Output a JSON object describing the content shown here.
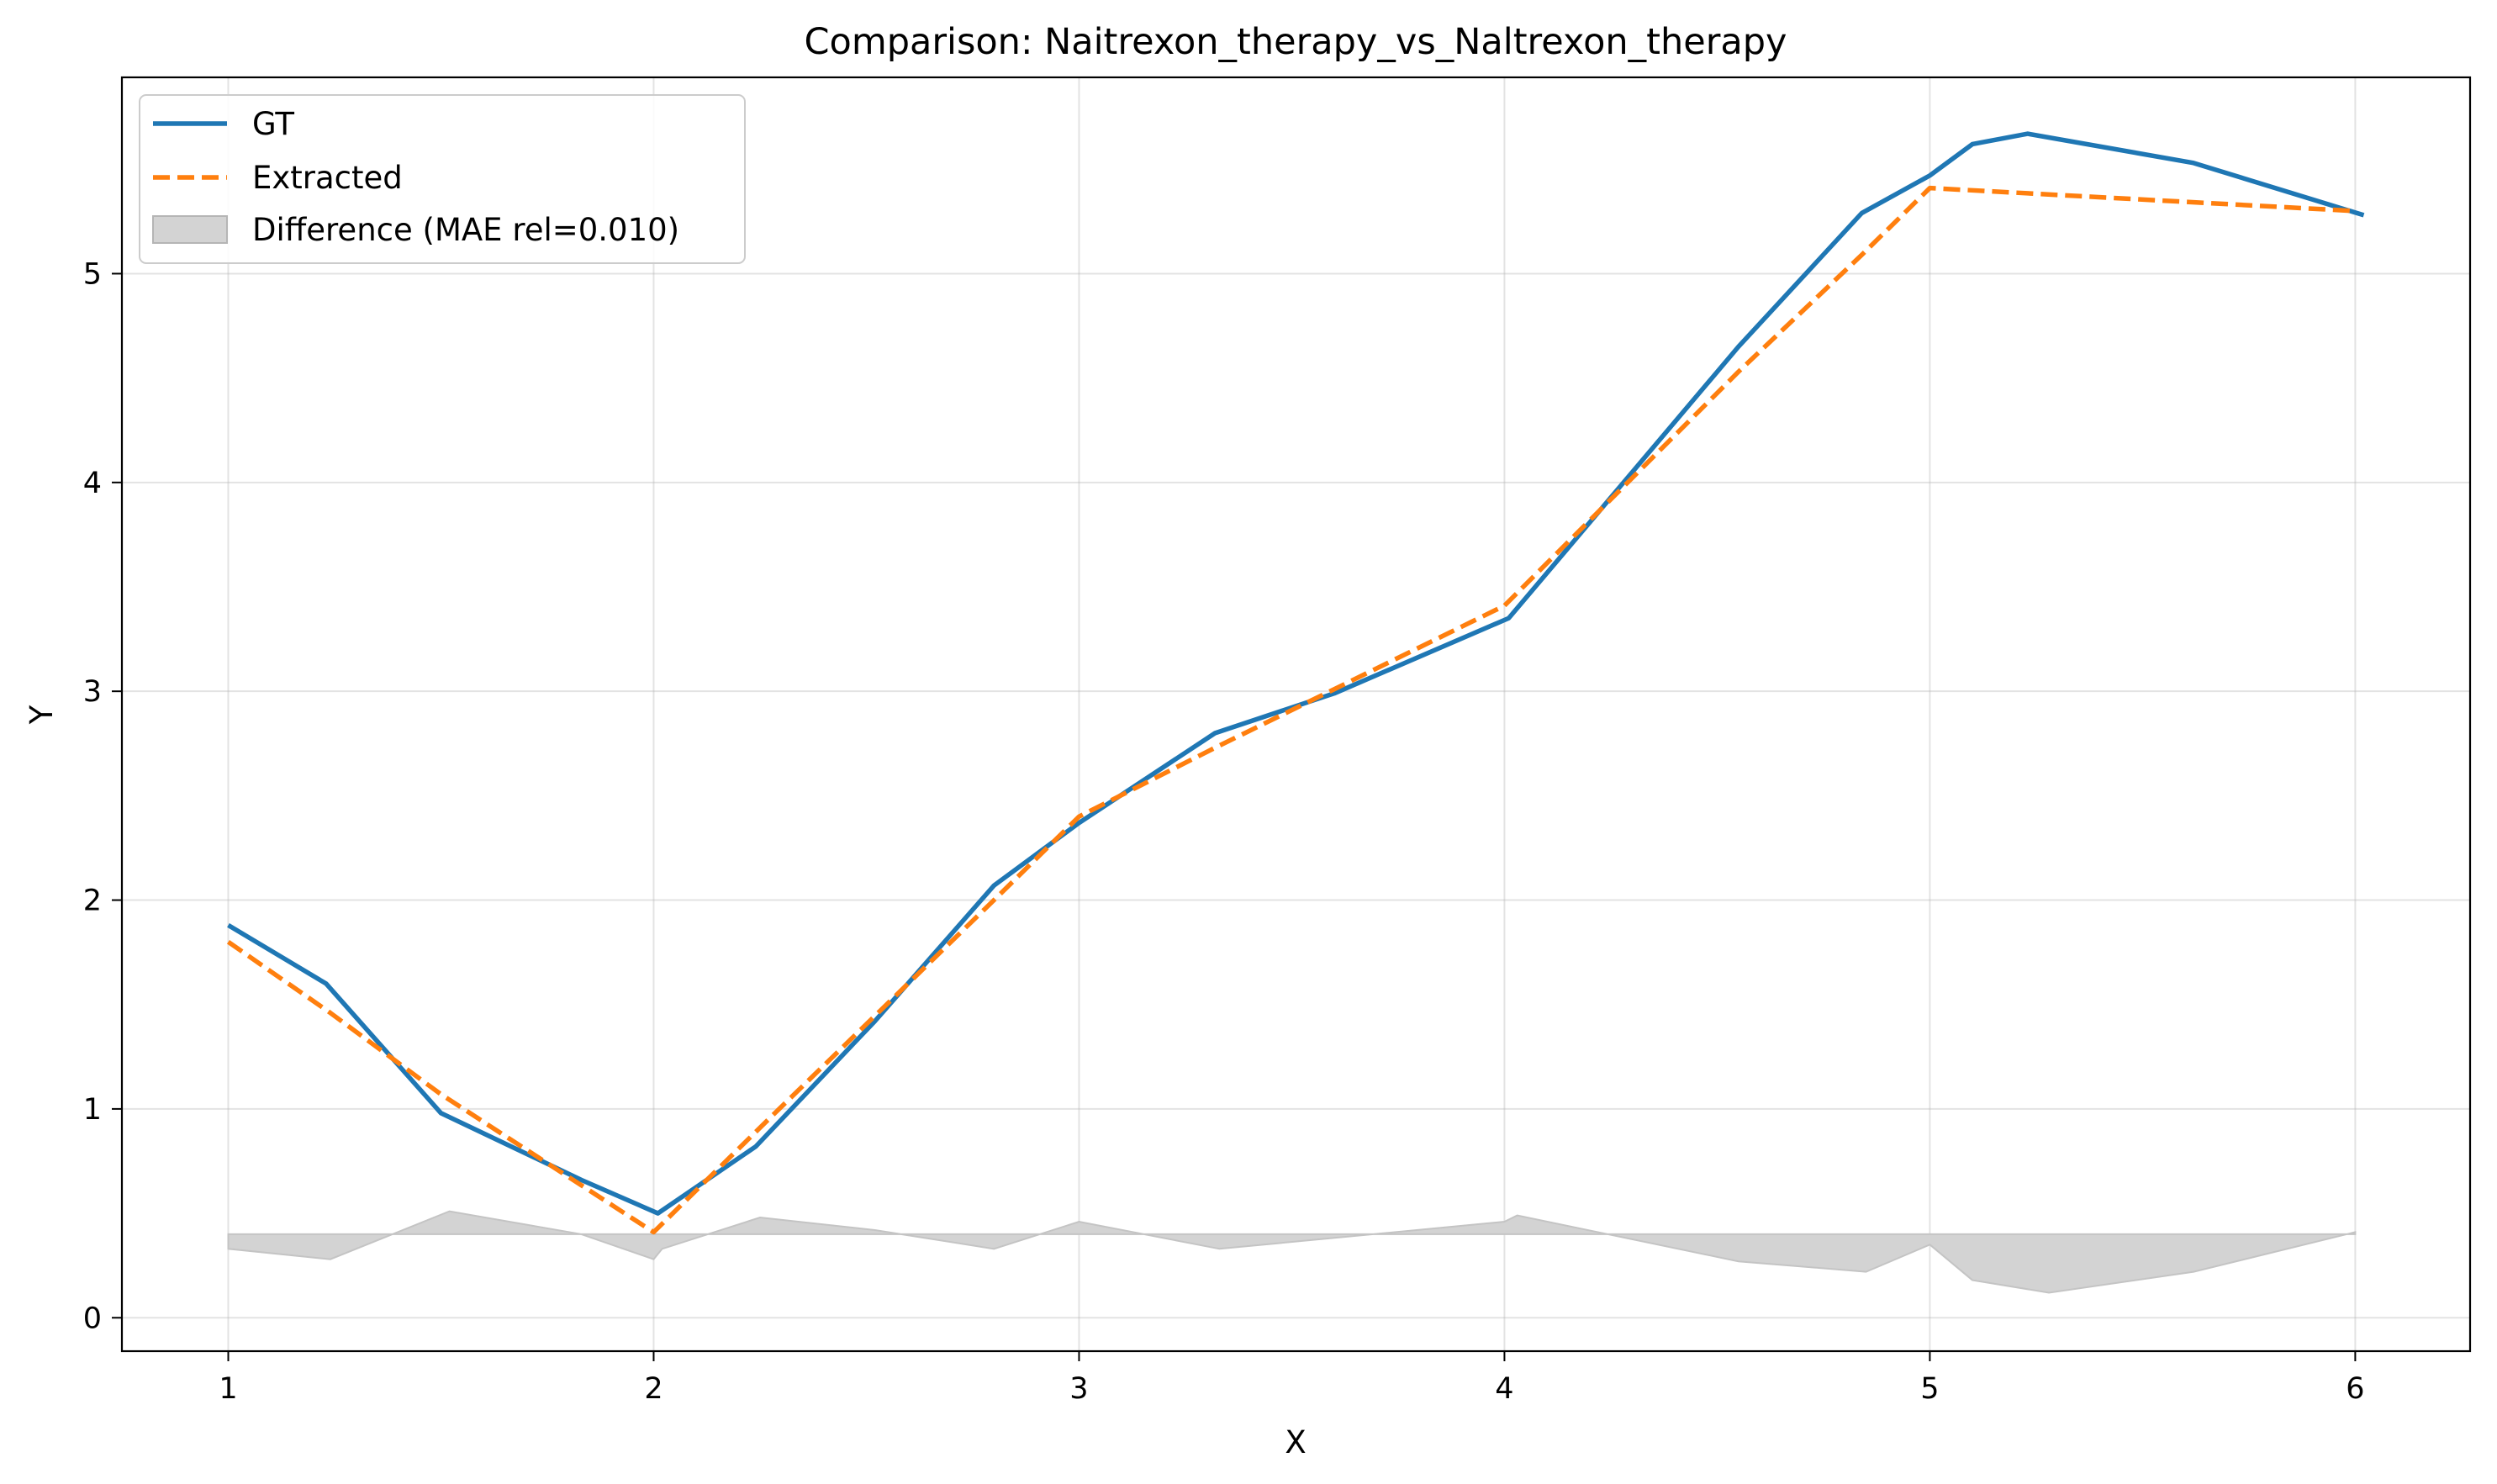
{
  "chart_data": {
    "type": "line",
    "title": "Comparison: Naitrexon_therapy_vs_Naltrexon_therapy",
    "xlabel": "X",
    "ylabel": "Y",
    "xlim": [
      0.75,
      6.27
    ],
    "ylim": [
      -0.16,
      5.94
    ],
    "xticks": [
      1,
      2,
      3,
      4,
      5,
      6
    ],
    "yticks": [
      0,
      1,
      2,
      3,
      4,
      5
    ],
    "grid": true,
    "legend_position": "top-left",
    "series": [
      {
        "name": "GT",
        "color": "#1f77b4",
        "style": "solid",
        "points": [
          [
            1.0,
            1.88
          ],
          [
            1.23,
            1.6
          ],
          [
            1.5,
            0.98
          ],
          [
            1.83,
            0.66
          ],
          [
            2.01,
            0.5
          ],
          [
            2.24,
            0.82
          ],
          [
            2.52,
            1.42
          ],
          [
            2.8,
            2.07
          ],
          [
            3.0,
            2.37
          ],
          [
            3.32,
            2.8
          ],
          [
            3.6,
            2.99
          ],
          [
            4.01,
            3.35
          ],
          [
            4.55,
            4.65
          ],
          [
            4.84,
            5.29
          ],
          [
            5.0,
            5.47
          ],
          [
            5.1,
            5.62
          ],
          [
            5.23,
            5.67
          ],
          [
            5.62,
            5.53
          ],
          [
            6.02,
            5.28
          ]
        ]
      },
      {
        "name": "Extracted",
        "color": "#ff7f0e",
        "style": "dashed",
        "points": [
          [
            1.0,
            1.8
          ],
          [
            1.24,
            1.46
          ],
          [
            1.5,
            1.07
          ],
          [
            2.0,
            0.41
          ],
          [
            2.28,
            0.97
          ],
          [
            2.8,
            2.0
          ],
          [
            3.0,
            2.4
          ],
          [
            3.32,
            2.73
          ],
          [
            4.0,
            3.41
          ],
          [
            4.55,
            4.53
          ],
          [
            4.84,
            5.09
          ],
          [
            5.0,
            5.41
          ],
          [
            6.0,
            5.3
          ]
        ]
      }
    ],
    "difference_band": {
      "name": "Difference (MAE rel=0.010)",
      "color": "#d3d3d3",
      "baseline": 0.4,
      "points": [
        [
          1.0,
          0.33
        ],
        [
          1.24,
          0.28
        ],
        [
          1.52,
          0.51
        ],
        [
          1.83,
          0.4
        ],
        [
          2.0,
          0.28
        ],
        [
          2.02,
          0.33
        ],
        [
          2.25,
          0.48
        ],
        [
          2.52,
          0.42
        ],
        [
          2.8,
          0.33
        ],
        [
          3.0,
          0.46
        ],
        [
          3.33,
          0.33
        ],
        [
          4.0,
          0.46
        ],
        [
          4.03,
          0.49
        ],
        [
          4.55,
          0.27
        ],
        [
          4.85,
          0.22
        ],
        [
          5.0,
          0.35
        ],
        [
          5.1,
          0.18
        ],
        [
          5.28,
          0.12
        ],
        [
          5.62,
          0.22
        ],
        [
          6.0,
          0.41
        ]
      ]
    }
  }
}
